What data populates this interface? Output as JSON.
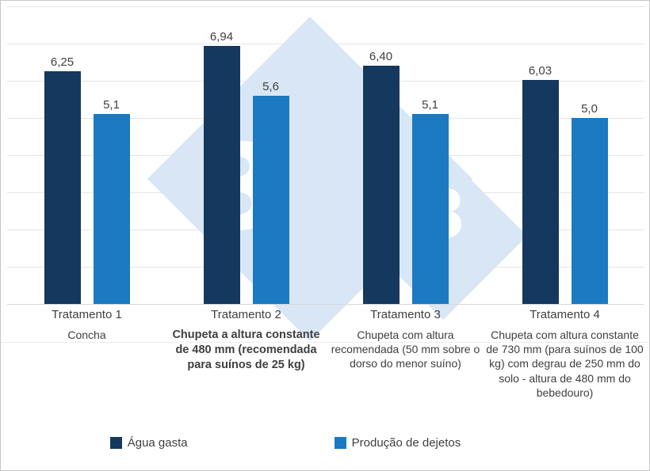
{
  "figure": {
    "background": "#FFFFFF",
    "border_color": "#C6C6C6"
  },
  "watermark": {
    "glyph": "3",
    "diamond_color": "#D8E6F5",
    "glyph_color": "#FFFFFF"
  },
  "chart_data": {
    "type": "bar",
    "title": "",
    "xlabel": "",
    "ylabel": "",
    "ylim": [
      0,
      8
    ],
    "grid": true,
    "gridline_count": 8,
    "legend_position": "bottom",
    "categories": [
      "Tratamento 1",
      "Tratamento 2",
      "Tratamento 3",
      "Tratamento 4"
    ],
    "category_descriptions": [
      "Concha",
      "Chupeta a altura constante de 480 mm (recomendada para suínos de 25 kg)",
      "Chupeta com altura recomendada (50 mm sobre o dorso do menor suíno)",
      "Chupeta com altura constante de 730 mm (para suínos de 100 kg) com degrau de 250 mm do solo - altura de 480 mm do bebedouro)"
    ],
    "emphasized_category_index": 1,
    "series": [
      {
        "name": "Água gasta",
        "color": "#15395E",
        "values": [
          6.25,
          6.94,
          6.4,
          6.03
        ],
        "value_labels": [
          "6,25",
          "6,94",
          "6,40",
          "6,03"
        ]
      },
      {
        "name": "Produção de dejetos",
        "color": "#1B7AC1",
        "values": [
          5.1,
          5.6,
          5.1,
          5.0
        ],
        "value_labels": [
          "5,1",
          "5,6",
          "5,1",
          "5,0"
        ]
      }
    ]
  }
}
